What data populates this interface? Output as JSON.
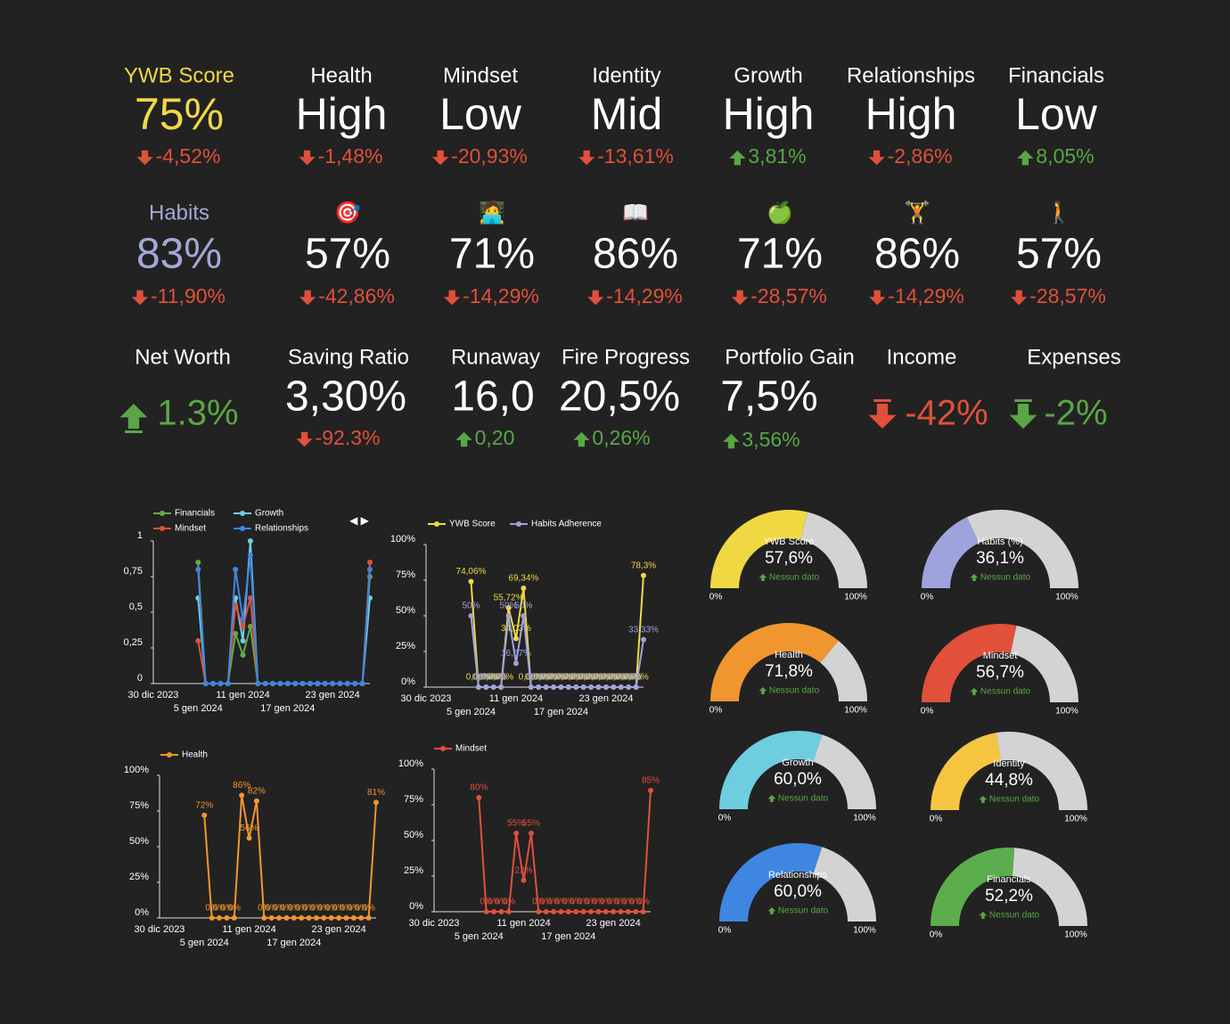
{
  "kpis_row1": [
    {
      "label": "YWB Score",
      "label_color": "#f1d84a",
      "value": "75%",
      "value_color": "#f1d84a",
      "delta": "-4,52%",
      "delta_color": "#e0503a",
      "trend": "down"
    },
    {
      "label": "Health",
      "label_color": "#ffffff",
      "value": "High",
      "value_color": "#ffffff",
      "delta": "-1,48%",
      "delta_color": "#e0503a",
      "trend": "down"
    },
    {
      "label": "Mindset",
      "label_color": "#ffffff",
      "value": "Low",
      "value_color": "#ffffff",
      "delta": "-20,93%",
      "delta_color": "#e0503a",
      "trend": "down"
    },
    {
      "label": "Identity",
      "label_color": "#ffffff",
      "value": "Mid",
      "value_color": "#ffffff",
      "delta": "-13,61%",
      "delta_color": "#e0503a",
      "trend": "down"
    },
    {
      "label": "Growth",
      "label_color": "#ffffff",
      "value": "High",
      "value_color": "#ffffff",
      "delta": "3,81%",
      "delta_color": "#5aa645",
      "trend": "up"
    },
    {
      "label": "Relationships",
      "label_color": "#ffffff",
      "value": "High",
      "value_color": "#ffffff",
      "delta": "-2,86%",
      "delta_color": "#e0503a",
      "trend": "down"
    },
    {
      "label": "Financials",
      "label_color": "#ffffff",
      "value": "Low",
      "value_color": "#ffffff",
      "delta": "8,05%",
      "delta_color": "#5aa645",
      "trend": "up"
    }
  ],
  "kpis_row2": [
    {
      "label": "Habits",
      "label_color": "#a3a8d8",
      "value": "83%",
      "value_color": "#a3a8d8",
      "delta": "-11,90%",
      "delta_color": "#e0503a",
      "trend": "down"
    },
    {
      "label": "🎯",
      "label_color": "#ffffff",
      "value": "57%",
      "value_color": "#ffffff",
      "delta": "-42,86%",
      "delta_color": "#e0503a",
      "trend": "down"
    },
    {
      "label": "🧑‍💻",
      "label_color": "#ffffff",
      "value": "71%",
      "value_color": "#ffffff",
      "delta": "-14,29%",
      "delta_color": "#e0503a",
      "trend": "down"
    },
    {
      "label": "📖",
      "label_color": "#ffffff",
      "value": "86%",
      "value_color": "#ffffff",
      "delta": "-14,29%",
      "delta_color": "#e0503a",
      "trend": "down"
    },
    {
      "label": "🍏",
      "label_color": "#ffffff",
      "value": "71%",
      "value_color": "#ffffff",
      "delta": "-28,57%",
      "delta_color": "#e0503a",
      "trend": "down"
    },
    {
      "label": "🏋️",
      "label_color": "#ffffff",
      "value": "86%",
      "value_color": "#ffffff",
      "delta": "-14,29%",
      "delta_color": "#e0503a",
      "trend": "down"
    },
    {
      "label": "🚶",
      "label_color": "#ffffff",
      "value": "57%",
      "value_color": "#ffffff",
      "delta": "-28,57%",
      "delta_color": "#e0503a",
      "trend": "down"
    }
  ],
  "kpis_row3": [
    {
      "label": "Net Worth",
      "label_color": "#ffffff",
      "value": "1.3%",
      "value_color": "#5aa645",
      "trend": "up"
    },
    {
      "label": "Saving Ratio",
      "label_color": "#ffffff",
      "value": "3,30%",
      "value_color": "#ffffff",
      "delta": "-92.3%",
      "delta_color": "#e0503a",
      "trend": "down"
    },
    {
      "label": "Runaway",
      "label_color": "#ffffff",
      "value": "16,0",
      "value_color": "#ffffff",
      "delta": "0,20",
      "delta_color": "#5aa645",
      "trend": "up"
    },
    {
      "label": "Fire Progress",
      "label_color": "#ffffff",
      "value": "20,5%",
      "value_color": "#ffffff",
      "delta": "0,26%",
      "delta_color": "#5aa645",
      "trend": "up"
    },
    {
      "label": "Portfolio Gain",
      "label_color": "#ffffff",
      "value": "7,5%",
      "value_color": "#ffffff",
      "delta": "3,56%",
      "delta_color": "#5aa645",
      "trend": "up"
    },
    {
      "label": "Income",
      "label_color": "#ffffff",
      "value": "-42%",
      "value_color": "#e0503a",
      "trend": "down"
    },
    {
      "label": "Expenses",
      "label_color": "#ffffff",
      "value": "-2%",
      "value_color": "#5aa645",
      "trend": "down"
    }
  ],
  "chart_data": [
    {
      "type": "line",
      "pager": "◀ ▶",
      "categories": [
        "30 dic 2023",
        null,
        null,
        null,
        null,
        null,
        "5 gen 2024",
        null,
        null,
        null,
        null,
        null,
        "11 gen 2024",
        null,
        null,
        null,
        null,
        null,
        "17 gen 2024",
        null,
        null,
        null,
        null,
        null,
        "23 gen 2024",
        null,
        null,
        null,
        null,
        null
      ],
      "ylim": [
        0,
        1
      ],
      "yticks": [
        0,
        {
          "value": 0.25,
          "label": "0,25"
        },
        {
          "value": 0.5,
          "label": "0,5"
        },
        {
          "value": 0.75,
          "label": "0,75"
        },
        1
      ],
      "series": [
        {
          "name": "Financials",
          "color": "#5cad4d",
          "values": [
            null,
            null,
            null,
            null,
            null,
            null,
            0.85,
            0,
            0,
            0,
            0,
            0.35,
            0.2,
            0.4,
            0,
            0,
            0,
            0,
            0,
            0,
            0,
            0,
            0,
            0,
            0,
            0,
            0,
            0,
            0,
            0.75
          ]
        },
        {
          "name": "Growth",
          "color": "#6fcde0",
          "values": [
            null,
            null,
            null,
            null,
            null,
            null,
            0.6,
            0,
            0,
            0,
            0,
            0.6,
            0.3,
            1,
            0,
            0,
            0,
            0,
            0,
            0,
            0,
            0,
            0,
            0,
            0,
            0,
            0,
            0,
            0,
            0.6
          ]
        },
        {
          "name": "Mindset",
          "color": "#e0503a",
          "values": [
            null,
            null,
            null,
            null,
            null,
            null,
            0.3,
            0,
            0,
            0,
            0,
            0.55,
            0.4,
            0.6,
            0,
            0,
            0,
            0,
            0,
            0,
            0,
            0,
            0,
            0,
            0,
            0,
            0,
            0,
            0,
            0.85
          ]
        },
        {
          "name": "Relationships",
          "color": "#3f86e0",
          "values": [
            null,
            null,
            null,
            null,
            null,
            null,
            0.8,
            0,
            0,
            0,
            0,
            0.8,
            0.45,
            0.9,
            0,
            0,
            0,
            0,
            0,
            0,
            0,
            0,
            0,
            0,
            0,
            0,
            0,
            0,
            0,
            0.8
          ]
        }
      ]
    },
    {
      "type": "line",
      "categories": [
        "30 dic 2023",
        null,
        null,
        null,
        null,
        null,
        "5 gen 2024",
        null,
        null,
        null,
        null,
        null,
        "11 gen 2024",
        null,
        null,
        null,
        null,
        null,
        "17 gen 2024",
        null,
        null,
        null,
        null,
        null,
        "23 gen 2024",
        null,
        null,
        null,
        null,
        null
      ],
      "ylim": [
        0,
        100
      ],
      "yticks": [
        {
          "value": 0,
          "label": "0%"
        },
        {
          "value": 25,
          "label": "25%"
        },
        {
          "value": 50,
          "label": "50%"
        },
        {
          "value": 75,
          "label": "75%"
        },
        {
          "value": 100,
          "label": "100%"
        }
      ],
      "series": [
        {
          "name": "YWB Score",
          "color": "#f0d843",
          "values": [
            null,
            null,
            null,
            null,
            null,
            null,
            74.06,
            0,
            0,
            0,
            0,
            55.72,
            34.03,
            69.34,
            0,
            0,
            0,
            0,
            0,
            0,
            0,
            0,
            0,
            0,
            0,
            0,
            0,
            0,
            0,
            78.3
          ],
          "value_labels": [
            null,
            null,
            null,
            null,
            null,
            null,
            "74,06%",
            "0,00%",
            "0,00%",
            "0,00%",
            "0,00%",
            "55,72%",
            "34,03%",
            "69,34%",
            "0,00%",
            "0,00%",
            "0,00%",
            "0,00%",
            "0,00%",
            "0,00%",
            "0,00%",
            "0,00%",
            "0,00%",
            "0,00%",
            "0,00%",
            "0,00%",
            "0,00%",
            "0,00%",
            "0,00%",
            "78,3%"
          ]
        },
        {
          "name": "Habits Adherence",
          "color": "#9fa3dc",
          "values": [
            null,
            null,
            null,
            null,
            null,
            null,
            50,
            0,
            0,
            0,
            0,
            50,
            16.67,
            50,
            0,
            0,
            0,
            0,
            0,
            0,
            0,
            0,
            0,
            0,
            0,
            0,
            0,
            0,
            0,
            33.33
          ],
          "value_labels": [
            null,
            null,
            null,
            null,
            null,
            null,
            "50%",
            "0%",
            "0%",
            "0%",
            "0%",
            "50%",
            "16,67%",
            "50%",
            "0%",
            "0%",
            "0%",
            "0%",
            "0%",
            "0%",
            "0%",
            "0%",
            "0%",
            "0%",
            "0%",
            "0%",
            "0%",
            "0%",
            "0%",
            "33,33%"
          ]
        }
      ]
    },
    {
      "type": "line",
      "categories": [
        "30 dic 2023",
        null,
        null,
        null,
        null,
        null,
        "5 gen 2024",
        null,
        null,
        null,
        null,
        null,
        "11 gen 2024",
        null,
        null,
        null,
        null,
        null,
        "17 gen 2024",
        null,
        null,
        null,
        null,
        null,
        "23 gen 2024",
        null,
        null,
        null,
        null,
        null
      ],
      "ylim": [
        0,
        100
      ],
      "yticks": [
        {
          "value": 0,
          "label": "0%"
        },
        {
          "value": 25,
          "label": "25%"
        },
        {
          "value": 50,
          "label": "50%"
        },
        {
          "value": 75,
          "label": "75%"
        },
        {
          "value": 100,
          "label": "100%"
        }
      ],
      "series": [
        {
          "name": "Health",
          "color": "#f0962f",
          "values": [
            null,
            null,
            null,
            null,
            null,
            null,
            72,
            0,
            0,
            0,
            0,
            86,
            56,
            82,
            0,
            0,
            0,
            0,
            0,
            0,
            0,
            0,
            0,
            0,
            0,
            0,
            0,
            0,
            0,
            81
          ],
          "value_labels": [
            null,
            null,
            null,
            null,
            null,
            null,
            "72%",
            "0%",
            "0%",
            "0%",
            "0%",
            "86%",
            "56%",
            "82%",
            "0%",
            "0%",
            "0%",
            "0%",
            "0%",
            "0%",
            "0%",
            "0%",
            "0%",
            "0%",
            "0%",
            "0%",
            "0%",
            "0%",
            "0%",
            "81%"
          ]
        }
      ]
    },
    {
      "type": "line",
      "categories": [
        "30 dic 2023",
        null,
        null,
        null,
        null,
        null,
        "5 gen 2024",
        null,
        null,
        null,
        null,
        null,
        "11 gen 2024",
        null,
        null,
        null,
        null,
        null,
        "17 gen 2024",
        null,
        null,
        null,
        null,
        null,
        "23 gen 2024",
        null,
        null,
        null,
        null,
        null
      ],
      "ylim": [
        0,
        100
      ],
      "yticks": [
        {
          "value": 0,
          "label": "0%"
        },
        {
          "value": 25,
          "label": "25%"
        },
        {
          "value": 50,
          "label": "50%"
        },
        {
          "value": 75,
          "label": "75%"
        },
        {
          "value": 100,
          "label": "100%"
        }
      ],
      "series": [
        {
          "name": "Mindset",
          "color": "#e0503a",
          "values": [
            null,
            null,
            null,
            null,
            null,
            null,
            80,
            0,
            0,
            0,
            0,
            55,
            22,
            55,
            0,
            0,
            0,
            0,
            0,
            0,
            0,
            0,
            0,
            0,
            0,
            0,
            0,
            0,
            0,
            85
          ],
          "value_labels": [
            null,
            null,
            null,
            null,
            null,
            null,
            "80%",
            "0%",
            "0%",
            "0%",
            "0%",
            "55%",
            "22%",
            "55%",
            "0%",
            "0%",
            "0%",
            "0%",
            "0%",
            "0%",
            "0%",
            "0%",
            "0%",
            "0%",
            "0%",
            "0%",
            "0%",
            "0%",
            "0%",
            "85%"
          ]
        }
      ]
    }
  ],
  "gauges": [
    {
      "title": "YWB Score",
      "value": 57.6,
      "value_label": "57,6%",
      "color": "#f0d843",
      "note": "Nessun dato",
      "range": [
        {
          "value": 0,
          "label": "0%"
        },
        {
          "value": 100,
          "label": "100%"
        }
      ]
    },
    {
      "title": "Habits (%)",
      "value": 36.1,
      "value_label": "36,1%",
      "color": "#9fa3dc",
      "note": "Nessun dato",
      "range": [
        {
          "value": 0,
          "label": "0%"
        },
        {
          "value": 100,
          "label": "100%"
        }
      ]
    },
    {
      "title": "Health",
      "value": 71.8,
      "value_label": "71,8%",
      "color": "#f0962f",
      "note": "Nessun dato",
      "range": [
        {
          "value": 0,
          "label": "0%"
        },
        {
          "value": 100,
          "label": "100%"
        }
      ]
    },
    {
      "title": "Mindset",
      "value": 56.7,
      "value_label": "56,7%",
      "color": "#e0503a",
      "note": "Nessun dato",
      "range": [
        {
          "value": 0,
          "label": "0%"
        },
        {
          "value": 100,
          "label": "100%"
        }
      ]
    },
    {
      "title": "Growth",
      "value": 60.0,
      "value_label": "60,0%",
      "color": "#6fcde0",
      "note": "Nessun dato",
      "range": [
        {
          "value": 0,
          "label": "0%"
        },
        {
          "value": 100,
          "label": "100%"
        }
      ]
    },
    {
      "title": "Identity",
      "value": 44.8,
      "value_label": "44,8%",
      "color": "#f5c542",
      "note": "Nessun dato",
      "range": [
        {
          "value": 0,
          "label": "0%"
        },
        {
          "value": 100,
          "label": "100%"
        }
      ]
    },
    {
      "title": "Relationships",
      "value": 60.0,
      "value_label": "60,0%",
      "color": "#3f86e0",
      "note": "Nessun dato",
      "range": [
        {
          "value": 0,
          "label": "0%"
        },
        {
          "value": 100,
          "label": "100%"
        }
      ]
    },
    {
      "title": "Financials",
      "value": 52.2,
      "value_label": "52,2%",
      "color": "#5cad4d",
      "note": "Nessun dato",
      "range": [
        {
          "value": 0,
          "label": "0%"
        },
        {
          "value": 100,
          "label": "100%"
        }
      ]
    }
  ]
}
